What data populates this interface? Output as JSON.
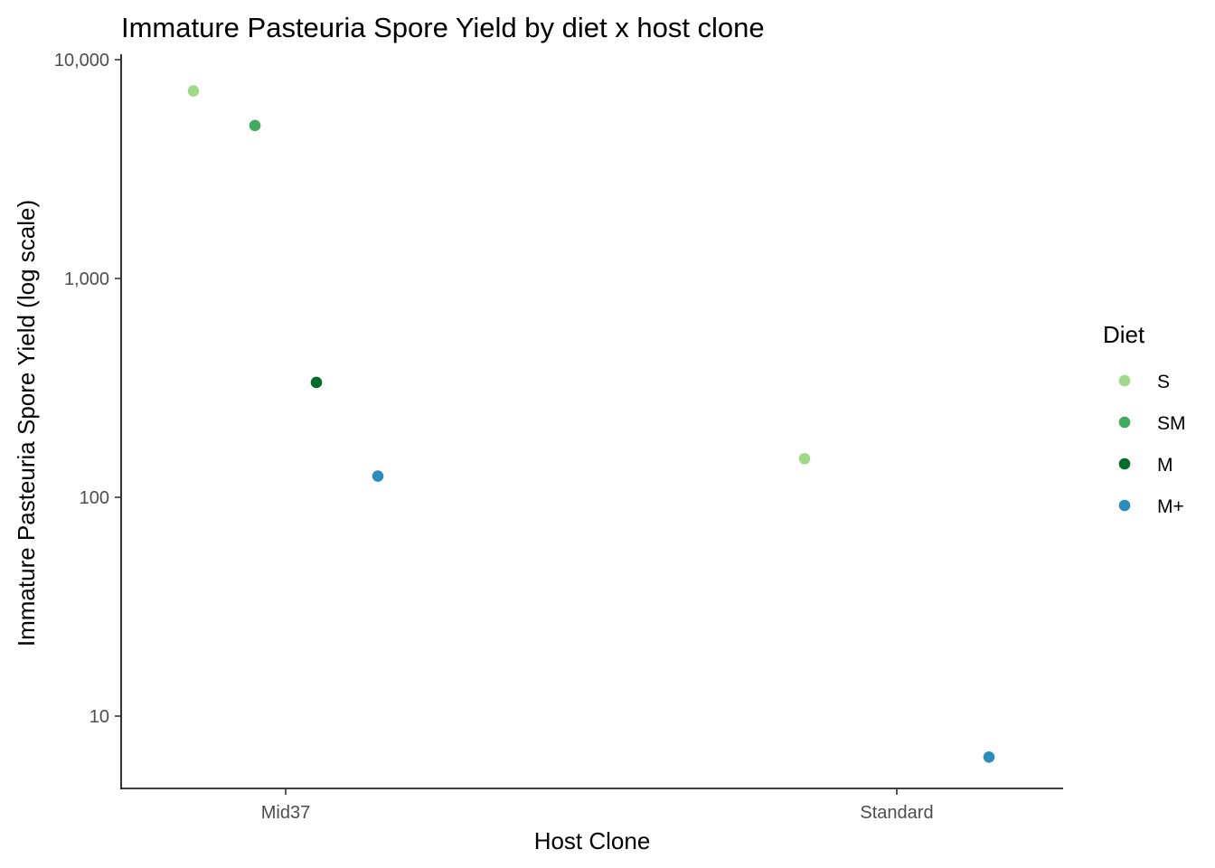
{
  "chart_data": {
    "type": "scatter",
    "title": "Immature Pasteuria Spore Yield by diet x host clone",
    "xlabel": "Host Clone",
    "ylabel": "Immature Pasteuria Spore Yield (log scale)",
    "y_scale": "log10",
    "categories": [
      "Mid37",
      "Standard"
    ],
    "y_ticks": [
      10,
      100,
      1000,
      10000
    ],
    "y_tick_labels": [
      "10",
      "100",
      "1,000",
      "10,000"
    ],
    "ylim": [
      5,
      10000
    ],
    "grid": false,
    "legend": {
      "title": "Diet",
      "position": "right",
      "items": [
        {
          "label": "S",
          "color": "#a1d98b"
        },
        {
          "label": "SM",
          "color": "#41ab5d"
        },
        {
          "label": "M",
          "color": "#006d2c"
        },
        {
          "label": "M+",
          "color": "#2b8cbe"
        }
      ]
    },
    "series": [
      {
        "name": "S",
        "color": "#a1d98b",
        "values": [
          7200,
          150
        ]
      },
      {
        "name": "SM",
        "color": "#41ab5d",
        "values": [
          5000,
          null
        ]
      },
      {
        "name": "M",
        "color": "#006d2c",
        "values": [
          335,
          null
        ]
      },
      {
        "name": "M+",
        "color": "#2b8cbe",
        "values": [
          125,
          6.5
        ]
      }
    ]
  }
}
